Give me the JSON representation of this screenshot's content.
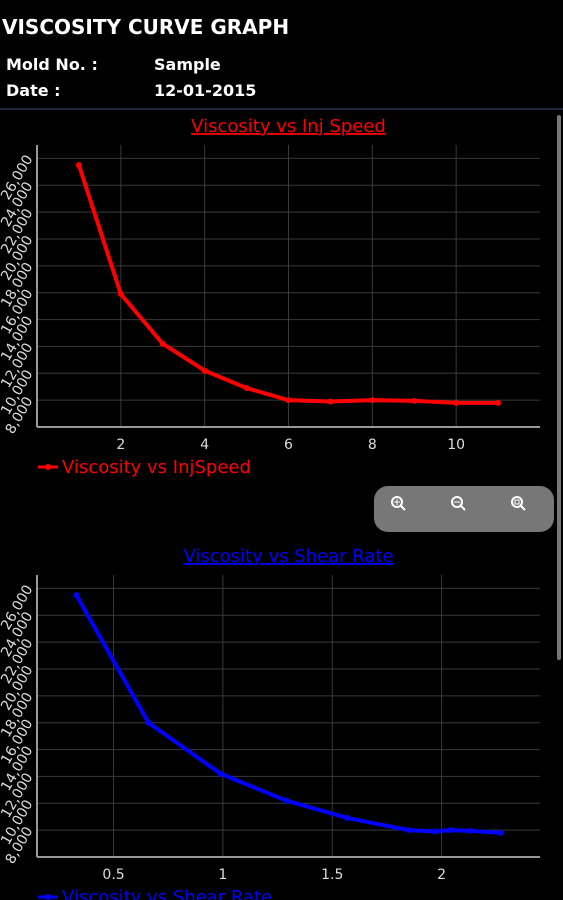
{
  "header": {
    "title": "VISCOSITY CURVE GRAPH",
    "fields": [
      {
        "label": "Mold No. :",
        "value": "Sample"
      },
      {
        "label": "Date :",
        "value": "12-01-2015"
      }
    ]
  },
  "chart_data": [
    {
      "type": "line",
      "title": "Viscosity vs Inj Speed",
      "x": [
        1,
        2,
        3,
        4,
        5,
        6,
        7,
        8,
        9,
        10,
        11
      ],
      "series": [
        {
          "name": "Viscosity vs InjSpeed",
          "color": "#ff0000",
          "values": [
            25500,
            15900,
            12200,
            10200,
            8900,
            8000,
            7900,
            8000,
            7950,
            7800,
            7800
          ]
        }
      ],
      "xlim": [
        0,
        12
      ],
      "xticks": [
        2,
        4,
        6,
        8,
        10
      ],
      "ylim": [
        6000,
        27000
      ],
      "yticks": [
        {
          "value": 8000,
          "label": "8,000"
        },
        {
          "value": 10000,
          "label": "10,000"
        },
        {
          "value": 12000,
          "label": "12,000"
        },
        {
          "value": 14000,
          "label": "14,000"
        },
        {
          "value": 16000,
          "label": "16,000"
        },
        {
          "value": 18000,
          "label": "18,000"
        },
        {
          "value": 20000,
          "label": "20,000"
        },
        {
          "value": 22000,
          "label": "22,000"
        },
        {
          "value": 24000,
          "label": "24,000"
        },
        {
          "value": 26000,
          "label": "26,000"
        }
      ],
      "grid": true
    },
    {
      "type": "line",
      "title": "Viscosity vs Shear Rate",
      "x": [
        0.33,
        0.66,
        0.99,
        1.29,
        1.57,
        1.85,
        1.97,
        2.04,
        2.13,
        2.27
      ],
      "series": [
        {
          "name": "Viscosity vs Shear Rate",
          "color": "#0000ff",
          "values": [
            25500,
            16000,
            12200,
            10200,
            8900,
            8000,
            7900,
            8000,
            7950,
            7800
          ]
        }
      ],
      "xlim": [
        0.15,
        2.45
      ],
      "xticks": [
        0.5,
        1,
        1.5,
        2
      ],
      "ylim": [
        6000,
        27000
      ],
      "yticks": [
        {
          "value": 8000,
          "label": "8,000"
        },
        {
          "value": 10000,
          "label": "10,000"
        },
        {
          "value": 12000,
          "label": "12,000"
        },
        {
          "value": 14000,
          "label": "14,000"
        },
        {
          "value": 16000,
          "label": "16,000"
        },
        {
          "value": 18000,
          "label": "18,000"
        },
        {
          "value": 20000,
          "label": "20,000"
        },
        {
          "value": 22000,
          "label": "22,000"
        },
        {
          "value": 24000,
          "label": "24,000"
        },
        {
          "value": 26000,
          "label": "26,000"
        }
      ],
      "grid": true
    }
  ]
}
